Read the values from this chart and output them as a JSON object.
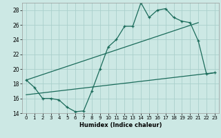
{
  "xlabel": "Humidex (Indice chaleur)",
  "bg_color": "#cce8e4",
  "grid_color": "#aad0cc",
  "line_color": "#1a6b5a",
  "xlim": [
    -0.5,
    23.5
  ],
  "ylim": [
    14,
    29
  ],
  "xticks": [
    0,
    1,
    2,
    3,
    4,
    5,
    6,
    7,
    8,
    9,
    10,
    11,
    12,
    13,
    14,
    15,
    16,
    17,
    18,
    19,
    20,
    21,
    22,
    23
  ],
  "yticks": [
    14,
    16,
    18,
    20,
    22,
    24,
    26,
    28
  ],
  "line1_x": [
    0,
    1,
    2,
    3,
    4,
    5,
    6,
    7,
    8,
    9,
    10,
    11,
    12,
    13,
    14,
    15,
    16,
    17,
    18,
    19,
    20,
    21,
    22,
    23
  ],
  "line1_y": [
    18.5,
    17.5,
    16.0,
    16.0,
    15.8,
    14.8,
    14.2,
    14.3,
    17.0,
    20.0,
    23.0,
    24.0,
    25.8,
    25.8,
    29.0,
    27.0,
    28.0,
    28.2,
    27.0,
    26.5,
    26.3,
    23.8,
    19.3,
    19.5
  ],
  "line2_x": [
    0,
    21
  ],
  "line2_y": [
    18.5,
    26.3
  ],
  "line3_x": [
    0,
    23
  ],
  "line3_y": [
    16.5,
    19.5
  ]
}
